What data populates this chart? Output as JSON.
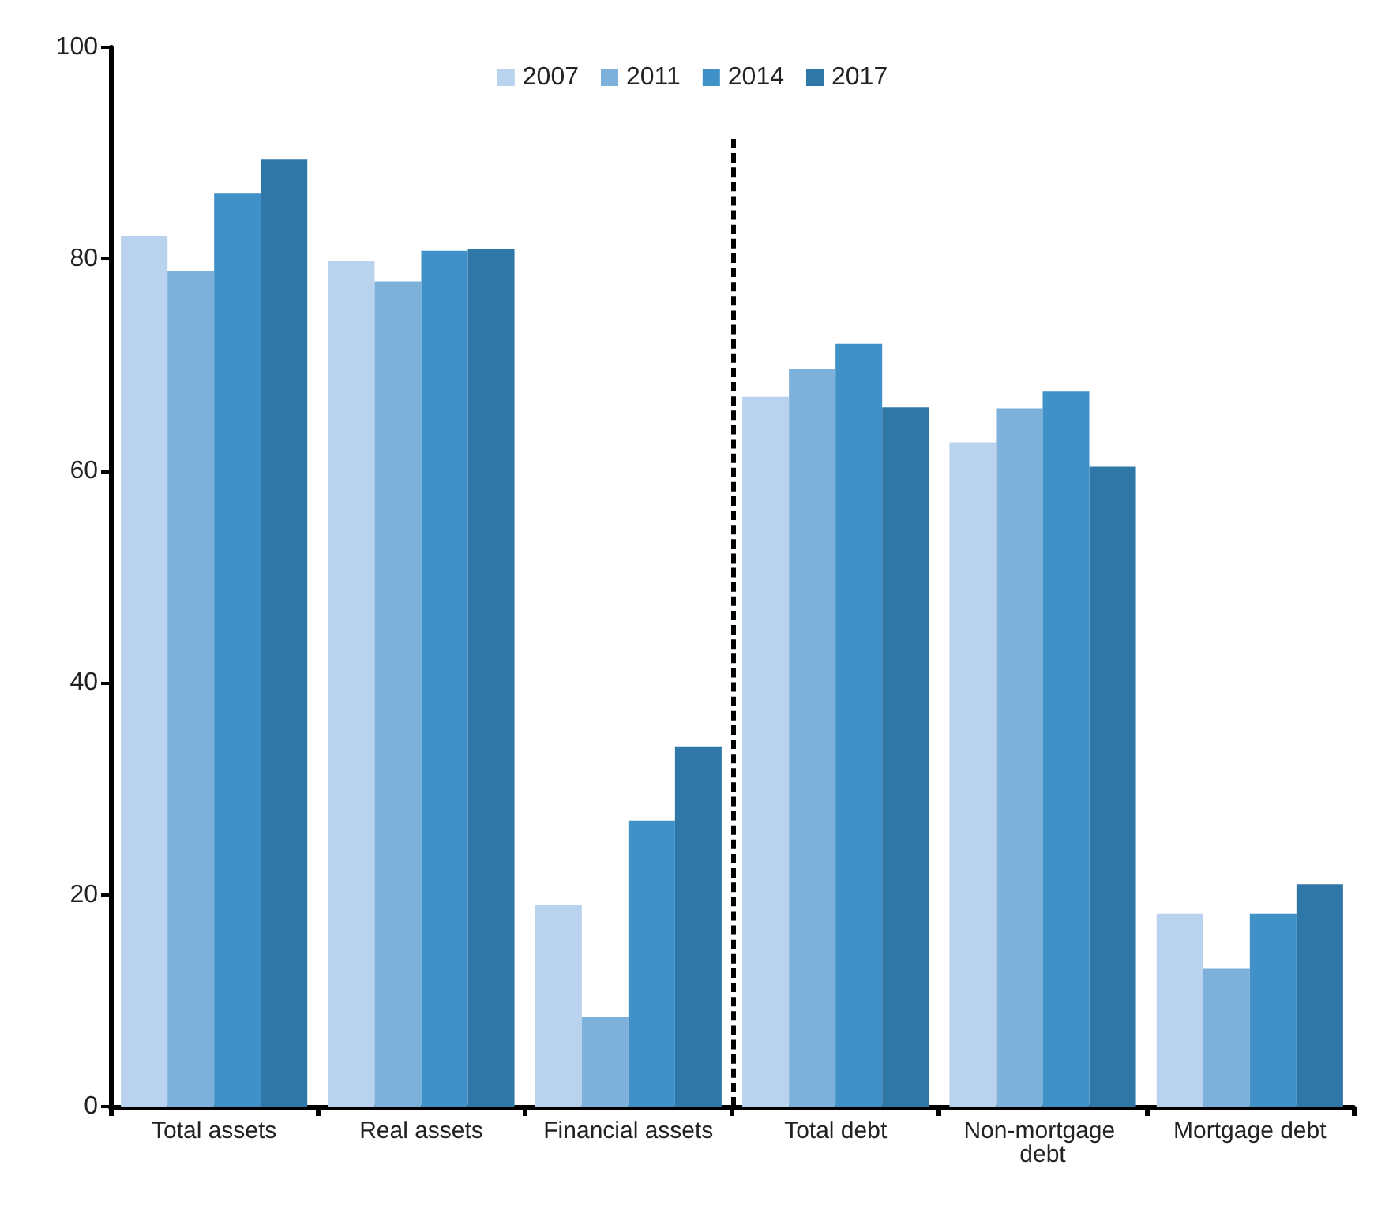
{
  "chart_data": {
    "type": "bar",
    "categories": [
      "Total assets",
      "Real assets",
      "Financial assets",
      "Total debt",
      "Non-mortgage debt",
      "Mortgage debt"
    ],
    "series": [
      {
        "name": "2007",
        "color": "#b9d3ee",
        "values": [
          82.2,
          79.8,
          19.0,
          67.0,
          62.7,
          18.2
        ]
      },
      {
        "name": "2011",
        "color": "#7db0da",
        "values": [
          78.9,
          77.9,
          8.5,
          69.6,
          65.9,
          13.0
        ]
      },
      {
        "name": "2014",
        "color": "#3f91c7",
        "values": [
          86.2,
          80.8,
          27.0,
          72.0,
          67.5,
          18.2
        ]
      },
      {
        "name": "2017",
        "color": "#2e77a7",
        "values": [
          89.4,
          81.0,
          34.0,
          66.0,
          60.4,
          21.0
        ]
      }
    ],
    "ylim": [
      0,
      100
    ],
    "yticks": [
      0,
      20,
      40,
      60,
      80,
      100
    ],
    "grid": false,
    "legend": "top"
  }
}
